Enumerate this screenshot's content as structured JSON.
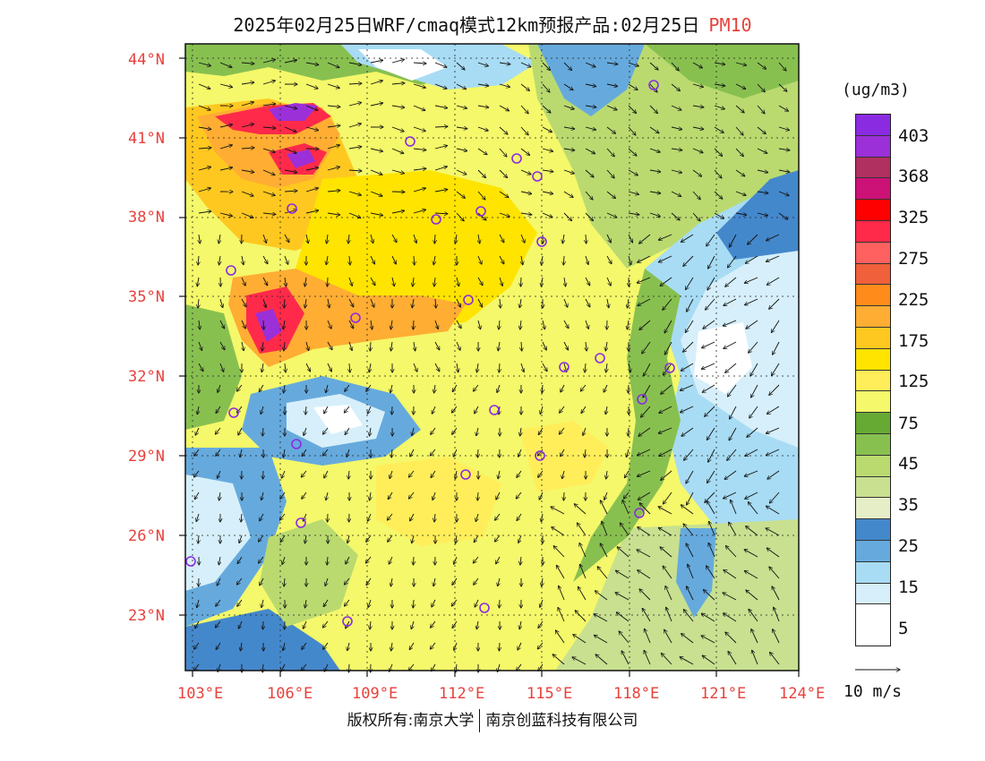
{
  "header": {
    "title": "2025年02月25日WRF/cmaq模式12km预报产品:02月25日",
    "pollutant": "PM10"
  },
  "legend": {
    "unit": "(ug/m3)",
    "colors": [
      "#8a2be2",
      "#9b30d9",
      "#b03060",
      "#cc1177",
      "#ff0000",
      "#ff2a4a",
      "#ff6060",
      "#f0603a",
      "#ff8c1a",
      "#ffad33",
      "#ffc820",
      "#ffe400",
      "#ffee5a",
      "#f4f86a",
      "#66aa33",
      "#88c050",
      "#bada70",
      "#c8e090",
      "#e6eec8",
      "#4488cc",
      "#66aadd",
      "#a8dcf4",
      "#d6effa",
      "#ffffff"
    ],
    "labels": [
      "403",
      "368",
      "325",
      "275",
      "225",
      "175",
      "125",
      "75",
      "45",
      "35",
      "25",
      "15",
      "5"
    ],
    "vector_label": "10 m/s"
  },
  "axes": {
    "lat_labels": [
      "44°N",
      "41°N",
      "38°N",
      "35°N",
      "32°N",
      "29°N",
      "26°N",
      "23°N"
    ],
    "lon_labels": [
      "103°E",
      "106°E",
      "109°E",
      "112°E",
      "115°E",
      "118°E",
      "121°E",
      "124°E"
    ]
  },
  "cities": [
    [
      730,
      95
    ],
    [
      458,
      158
    ],
    [
      577,
      177
    ],
    [
      600,
      197
    ],
    [
      326,
      233
    ],
    [
      487,
      245
    ],
    [
      537,
      236
    ],
    [
      605,
      270
    ],
    [
      258,
      302
    ],
    [
      523,
      335
    ],
    [
      397,
      355
    ],
    [
      630,
      410
    ],
    [
      670,
      400
    ],
    [
      748,
      411
    ],
    [
      717,
      446
    ],
    [
      261,
      461
    ],
    [
      552,
      458
    ],
    [
      331,
      496
    ],
    [
      603,
      509
    ],
    [
      520,
      530
    ],
    [
      336,
      584
    ],
    [
      714,
      573
    ],
    [
      213,
      627
    ],
    [
      541,
      679
    ],
    [
      388,
      694
    ]
  ],
  "footer": {
    "copyright": "版权所有:南京大学",
    "company": "南京创蓝科技有限公司"
  }
}
